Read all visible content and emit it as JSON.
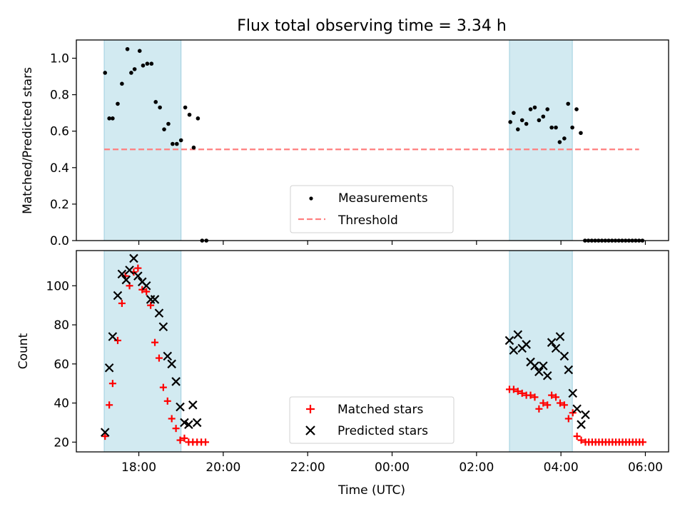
{
  "chart_data": {
    "type": "scatter",
    "title": "Flux total observing time = 3.34 h",
    "xlabel": "Time (UTC)",
    "x_ticks": [
      "18:00",
      "20:00",
      "22:00",
      "00:00",
      "02:00",
      "04:00",
      "06:00"
    ],
    "x_range_hours": [
      16.52,
      30.55
    ],
    "shaded_intervals_hours": [
      [
        17.18,
        19.0
      ],
      [
        26.78,
        28.27
      ]
    ],
    "shade_color": "#add8e6",
    "panels": [
      {
        "ylabel": "Matched/Predicted stars",
        "ylim": [
          0,
          1.1
        ],
        "y_ticks": [
          "0.0",
          "0.2",
          "0.4",
          "0.6",
          "0.8",
          "1.0"
        ],
        "legend": [
          "Measurements",
          "Threshold"
        ],
        "legend_position": "lower center",
        "threshold": {
          "name": "Threshold",
          "value": 0.5,
          "x_range_hours": [
            17.18,
            29.85
          ],
          "color": "#ff7f7f"
        },
        "series": [
          {
            "name": "Measurements",
            "color": "#000000",
            "points": [
              [
                17.2,
                0.92
              ],
              [
                17.3,
                0.67
              ],
              [
                17.38,
                0.67
              ],
              [
                17.5,
                0.75
              ],
              [
                17.6,
                0.86
              ],
              [
                17.73,
                1.05
              ],
              [
                17.82,
                0.92
              ],
              [
                17.9,
                0.94
              ],
              [
                18.02,
                1.04
              ],
              [
                18.1,
                0.96
              ],
              [
                18.2,
                0.97
              ],
              [
                18.3,
                0.97
              ],
              [
                18.4,
                0.76
              ],
              [
                18.5,
                0.73
              ],
              [
                18.6,
                0.61
              ],
              [
                18.7,
                0.64
              ],
              [
                18.8,
                0.53
              ],
              [
                18.9,
                0.53
              ],
              [
                19.0,
                0.55
              ],
              [
                19.1,
                0.73
              ],
              [
                19.2,
                0.69
              ],
              [
                19.3,
                0.51
              ],
              [
                19.4,
                0.67
              ],
              [
                19.5,
                0.0
              ],
              [
                19.6,
                0.0
              ],
              [
                26.8,
                0.65
              ],
              [
                26.88,
                0.7
              ],
              [
                26.98,
                0.61
              ],
              [
                27.08,
                0.66
              ],
              [
                27.18,
                0.64
              ],
              [
                27.28,
                0.72
              ],
              [
                27.38,
                0.73
              ],
              [
                27.48,
                0.66
              ],
              [
                27.58,
                0.68
              ],
              [
                27.68,
                0.72
              ],
              [
                27.78,
                0.62
              ],
              [
                27.88,
                0.62
              ],
              [
                27.97,
                0.54
              ],
              [
                28.08,
                0.56
              ],
              [
                28.17,
                0.75
              ],
              [
                28.27,
                0.62
              ],
              [
                28.37,
                0.72
              ],
              [
                28.47,
                0.59
              ],
              [
                28.57,
                0.0
              ],
              [
                28.65,
                0.0
              ],
              [
                28.73,
                0.0
              ],
              [
                28.81,
                0.0
              ],
              [
                28.89,
                0.0
              ],
              [
                28.97,
                0.0
              ],
              [
                29.05,
                0.0
              ],
              [
                29.13,
                0.0
              ],
              [
                29.21,
                0.0
              ],
              [
                29.29,
                0.0
              ],
              [
                29.37,
                0.0
              ],
              [
                29.45,
                0.0
              ],
              [
                29.53,
                0.0
              ],
              [
                29.61,
                0.0
              ],
              [
                29.69,
                0.0
              ],
              [
                29.77,
                0.0
              ],
              [
                29.85,
                0.0
              ],
              [
                29.93,
                0.0
              ]
            ]
          }
        ]
      },
      {
        "ylabel": "Count",
        "ylim": [
          15,
          118
        ],
        "y_ticks": [
          "20",
          "40",
          "60",
          "80",
          "100"
        ],
        "legend": [
          "Matched stars",
          "Predicted stars"
        ],
        "legend_position": "lower center",
        "series": [
          {
            "name": "Matched stars",
            "color": "#ff0000",
            "marker": "plus",
            "points": [
              [
                17.2,
                23
              ],
              [
                17.3,
                39
              ],
              [
                17.38,
                50
              ],
              [
                17.5,
                72
              ],
              [
                17.6,
                91
              ],
              [
                17.68,
                105
              ],
              [
                17.78,
                100
              ],
              [
                17.88,
                107
              ],
              [
                17.98,
                109
              ],
              [
                18.08,
                98
              ],
              [
                18.18,
                97
              ],
              [
                18.28,
                90
              ],
              [
                18.38,
                71
              ],
              [
                18.48,
                63
              ],
              [
                18.58,
                48
              ],
              [
                18.68,
                41
              ],
              [
                18.78,
                32
              ],
              [
                18.88,
                27
              ],
              [
                18.98,
                21
              ],
              [
                19.08,
                22
              ],
              [
                19.18,
                20
              ],
              [
                19.28,
                20
              ],
              [
                19.38,
                20
              ],
              [
                19.48,
                20
              ],
              [
                19.58,
                20
              ],
              [
                26.78,
                47
              ],
              [
                26.88,
                47
              ],
              [
                26.98,
                46
              ],
              [
                27.08,
                45
              ],
              [
                27.18,
                44
              ],
              [
                27.28,
                44
              ],
              [
                27.38,
                43
              ],
              [
                27.48,
                37
              ],
              [
                27.58,
                40
              ],
              [
                27.68,
                39
              ],
              [
                27.78,
                44
              ],
              [
                27.88,
                43
              ],
              [
                27.98,
                40
              ],
              [
                28.08,
                39
              ],
              [
                28.18,
                32
              ],
              [
                28.28,
                35
              ],
              [
                28.38,
                23
              ],
              [
                28.48,
                21
              ],
              [
                28.58,
                20
              ],
              [
                28.66,
                20
              ],
              [
                28.74,
                20
              ],
              [
                28.82,
                20
              ],
              [
                28.9,
                20
              ],
              [
                28.98,
                20
              ],
              [
                29.06,
                20
              ],
              [
                29.14,
                20
              ],
              [
                29.22,
                20
              ],
              [
                29.3,
                20
              ],
              [
                29.38,
                20
              ],
              [
                29.46,
                20
              ],
              [
                29.54,
                20
              ],
              [
                29.62,
                20
              ],
              [
                29.7,
                20
              ],
              [
                29.78,
                20
              ],
              [
                29.86,
                20
              ],
              [
                29.94,
                20
              ]
            ]
          },
          {
            "name": "Predicted stars",
            "color": "#000000",
            "marker": "x",
            "points": [
              [
                17.2,
                25
              ],
              [
                17.3,
                58
              ],
              [
                17.38,
                74
              ],
              [
                17.5,
                95
              ],
              [
                17.6,
                106
              ],
              [
                17.7,
                103
              ],
              [
                17.78,
                108
              ],
              [
                17.88,
                114
              ],
              [
                17.98,
                105
              ],
              [
                18.08,
                102
              ],
              [
                18.18,
                100
              ],
              [
                18.28,
                93
              ],
              [
                18.38,
                93
              ],
              [
                18.48,
                86
              ],
              [
                18.58,
                79
              ],
              [
                18.68,
                64
              ],
              [
                18.78,
                60
              ],
              [
                18.88,
                51
              ],
              [
                18.98,
                38
              ],
              [
                19.08,
                30
              ],
              [
                19.18,
                29
              ],
              [
                19.28,
                39
              ],
              [
                19.38,
                30
              ],
              [
                26.78,
                72
              ],
              [
                26.88,
                67
              ],
              [
                26.98,
                75
              ],
              [
                27.08,
                68
              ],
              [
                27.18,
                70
              ],
              [
                27.28,
                61
              ],
              [
                27.38,
                59
              ],
              [
                27.48,
                56
              ],
              [
                27.58,
                59
              ],
              [
                27.68,
                54
              ],
              [
                27.78,
                71
              ],
              [
                27.88,
                68
              ],
              [
                27.98,
                74
              ],
              [
                28.08,
                64
              ],
              [
                28.18,
                57
              ],
              [
                28.28,
                45
              ],
              [
                28.38,
                37
              ],
              [
                28.48,
                29
              ],
              [
                28.58,
                34
              ]
            ]
          }
        ]
      }
    ]
  }
}
